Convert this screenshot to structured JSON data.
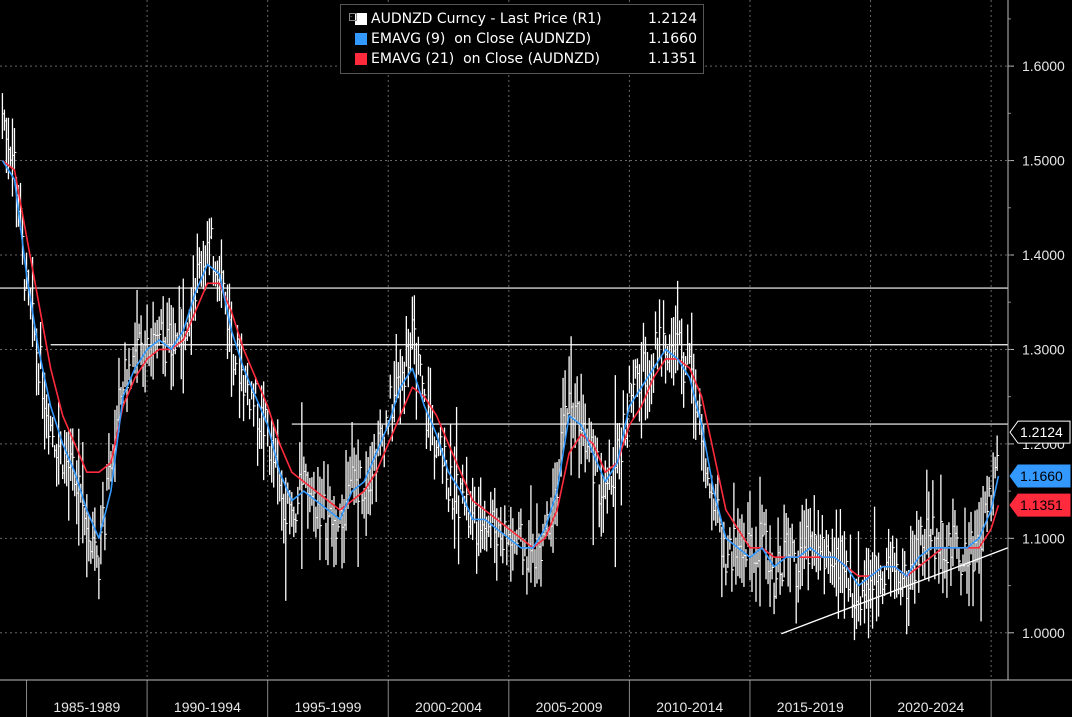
{
  "chart_data": {
    "type": "line",
    "title": "",
    "xlabel": "",
    "ylabel": "",
    "ylim": [
      0.95,
      1.67
    ],
    "xlim": [
      1983.9,
      2025.7
    ],
    "y_ticks": [
      "1.0000",
      "1.1000",
      "1.2000",
      "1.3000",
      "1.4000",
      "1.5000",
      "1.6000"
    ],
    "y_tick_values": [
      1.0,
      1.1,
      1.2,
      1.3,
      1.4,
      1.5,
      1.6
    ],
    "x_ticks": [
      "1985-1989",
      "1990-1994",
      "1995-1999",
      "2000-2004",
      "2005-2009",
      "2010-2014",
      "2015-2019",
      "2020-2024"
    ],
    "x_tick_bounds": [
      1985,
      1990,
      1995,
      2000,
      2005,
      2010,
      2015,
      2020,
      2025
    ],
    "grid": true,
    "legend_position": "top-center",
    "series": [
      {
        "name": "AUDNZD Curncy - Last Price (R1)",
        "label_value": "1.2124",
        "style": "high-low bars",
        "color": "#ffffff",
        "x": [
          1984.0,
          1984.5,
          1985.0,
          1985.5,
          1986.0,
          1986.5,
          1987.0,
          1987.5,
          1988.0,
          1988.5,
          1989.0,
          1989.5,
          1990.0,
          1990.5,
          1991.0,
          1991.5,
          1992.0,
          1992.5,
          1993.0,
          1993.5,
          1994.0,
          1994.5,
          1995.0,
          1995.5,
          1996.0,
          1996.5,
          1997.0,
          1997.5,
          1998.0,
          1998.5,
          1999.0,
          1999.5,
          2000.0,
          2000.5,
          2001.0,
          2001.5,
          2002.0,
          2002.5,
          2003.0,
          2003.5,
          2004.0,
          2004.5,
          2005.0,
          2005.5,
          2006.0,
          2006.5,
          2007.0,
          2007.5,
          2008.0,
          2008.5,
          2009.0,
          2009.5,
          2010.0,
          2010.5,
          2011.0,
          2011.5,
          2012.0,
          2012.5,
          2013.0,
          2013.5,
          2014.0,
          2014.5,
          2015.0,
          2015.5,
          2016.0,
          2016.5,
          2017.0,
          2017.5,
          2018.0,
          2018.5,
          2019.0,
          2019.5,
          2020.0,
          2020.5,
          2021.0,
          2021.5,
          2022.0,
          2022.5,
          2023.0,
          2023.5,
          2024.0,
          2024.5,
          2025.0,
          2025.3
        ],
        "y": [
          1.55,
          1.5,
          1.36,
          1.29,
          1.22,
          1.19,
          1.16,
          1.12,
          1.08,
          1.17,
          1.27,
          1.29,
          1.31,
          1.32,
          1.3,
          1.33,
          1.37,
          1.41,
          1.39,
          1.31,
          1.27,
          1.24,
          1.21,
          1.15,
          1.13,
          1.15,
          1.14,
          1.12,
          1.11,
          1.16,
          1.16,
          1.19,
          1.23,
          1.27,
          1.31,
          1.24,
          1.2,
          1.16,
          1.14,
          1.11,
          1.12,
          1.11,
          1.1,
          1.09,
          1.08,
          1.11,
          1.16,
          1.26,
          1.23,
          1.18,
          1.14,
          1.18,
          1.25,
          1.27,
          1.29,
          1.31,
          1.3,
          1.28,
          1.22,
          1.14,
          1.08,
          1.09,
          1.08,
          1.1,
          1.06,
          1.09,
          1.07,
          1.1,
          1.08,
          1.09,
          1.06,
          1.04,
          1.06,
          1.07,
          1.07,
          1.05,
          1.09,
          1.11,
          1.09,
          1.09,
          1.08,
          1.1,
          1.15,
          1.2124
        ]
      },
      {
        "name": "EMAVG (9)  on Close (AUDNZD)",
        "label_value": "1.1660",
        "color": "#3399ff",
        "x": [
          1984.0,
          1984.5,
          1985.0,
          1985.5,
          1986.0,
          1986.5,
          1987.0,
          1987.5,
          1988.0,
          1988.5,
          1989.0,
          1989.5,
          1990.0,
          1990.5,
          1991.0,
          1991.5,
          1992.0,
          1992.5,
          1993.0,
          1993.5,
          1994.0,
          1994.5,
          1995.0,
          1995.5,
          1996.0,
          1996.5,
          1997.0,
          1997.5,
          1998.0,
          1998.5,
          1999.0,
          1999.5,
          2000.0,
          2000.5,
          2001.0,
          2001.5,
          2002.0,
          2002.5,
          2003.0,
          2003.5,
          2004.0,
          2004.5,
          2005.0,
          2005.5,
          2006.0,
          2006.5,
          2007.0,
          2007.5,
          2008.0,
          2008.5,
          2009.0,
          2009.5,
          2010.0,
          2010.5,
          2011.0,
          2011.5,
          2012.0,
          2012.5,
          2013.0,
          2013.5,
          2014.0,
          2014.5,
          2015.0,
          2015.5,
          2016.0,
          2016.5,
          2017.0,
          2017.5,
          2018.0,
          2018.5,
          2019.0,
          2019.5,
          2020.0,
          2020.5,
          2021.0,
          2021.5,
          2022.0,
          2022.5,
          2023.0,
          2023.5,
          2024.0,
          2024.5,
          2025.0,
          2025.3
        ],
        "y": [
          1.5,
          1.48,
          1.38,
          1.3,
          1.24,
          1.2,
          1.17,
          1.13,
          1.1,
          1.15,
          1.25,
          1.28,
          1.3,
          1.31,
          1.3,
          1.32,
          1.36,
          1.39,
          1.38,
          1.32,
          1.28,
          1.25,
          1.22,
          1.17,
          1.14,
          1.15,
          1.14,
          1.13,
          1.12,
          1.15,
          1.16,
          1.19,
          1.22,
          1.26,
          1.28,
          1.24,
          1.21,
          1.17,
          1.15,
          1.12,
          1.12,
          1.11,
          1.1,
          1.09,
          1.09,
          1.11,
          1.15,
          1.23,
          1.22,
          1.19,
          1.16,
          1.18,
          1.24,
          1.26,
          1.28,
          1.3,
          1.29,
          1.27,
          1.22,
          1.15,
          1.1,
          1.09,
          1.08,
          1.09,
          1.07,
          1.08,
          1.08,
          1.09,
          1.08,
          1.08,
          1.07,
          1.05,
          1.06,
          1.07,
          1.07,
          1.06,
          1.08,
          1.09,
          1.09,
          1.09,
          1.09,
          1.1,
          1.13,
          1.166
        ]
      },
      {
        "name": "EMAVG (21)  on Close (AUDNZD)",
        "label_value": "1.1351",
        "color": "#ff2b3d",
        "x": [
          1984.0,
          1984.5,
          1985.0,
          1985.5,
          1986.0,
          1986.5,
          1987.0,
          1987.5,
          1988.0,
          1988.5,
          1989.0,
          1989.5,
          1990.0,
          1990.5,
          1991.0,
          1991.5,
          1992.0,
          1992.5,
          1993.0,
          1993.5,
          1994.0,
          1994.5,
          1995.0,
          1995.5,
          1996.0,
          1996.5,
          1997.0,
          1997.5,
          1998.0,
          1998.5,
          1999.0,
          1999.5,
          2000.0,
          2000.5,
          2001.0,
          2001.5,
          2002.0,
          2002.5,
          2003.0,
          2003.5,
          2004.0,
          2004.5,
          2005.0,
          2005.5,
          2006.0,
          2006.5,
          2007.0,
          2007.5,
          2008.0,
          2008.5,
          2009.0,
          2009.5,
          2010.0,
          2010.5,
          2011.0,
          2011.5,
          2012.0,
          2012.5,
          2013.0,
          2013.5,
          2014.0,
          2014.5,
          2015.0,
          2015.5,
          2016.0,
          2016.5,
          2017.0,
          2017.5,
          2018.0,
          2018.5,
          2019.0,
          2019.5,
          2020.0,
          2020.5,
          2021.0,
          2021.5,
          2022.0,
          2022.5,
          2023.0,
          2023.5,
          2024.0,
          2024.5,
          2025.0,
          2025.3
        ],
        "y": [
          1.5,
          1.49,
          1.42,
          1.35,
          1.28,
          1.23,
          1.2,
          1.17,
          1.17,
          1.18,
          1.24,
          1.27,
          1.29,
          1.3,
          1.3,
          1.31,
          1.34,
          1.37,
          1.37,
          1.34,
          1.3,
          1.27,
          1.24,
          1.2,
          1.17,
          1.16,
          1.15,
          1.14,
          1.13,
          1.14,
          1.15,
          1.17,
          1.2,
          1.23,
          1.26,
          1.25,
          1.23,
          1.2,
          1.17,
          1.14,
          1.13,
          1.12,
          1.11,
          1.1,
          1.09,
          1.1,
          1.13,
          1.19,
          1.21,
          1.2,
          1.17,
          1.18,
          1.22,
          1.24,
          1.27,
          1.29,
          1.29,
          1.28,
          1.25,
          1.19,
          1.13,
          1.11,
          1.09,
          1.09,
          1.08,
          1.08,
          1.08,
          1.08,
          1.08,
          1.08,
          1.07,
          1.06,
          1.06,
          1.07,
          1.07,
          1.06,
          1.07,
          1.08,
          1.09,
          1.09,
          1.09,
          1.09,
          1.11,
          1.1351
        ]
      }
    ],
    "annotations": [
      {
        "type": "horizontal-line",
        "y": 1.365,
        "x_start": 1983.9
      },
      {
        "type": "horizontal-line",
        "y": 1.305,
        "x_start": 1986.0
      },
      {
        "type": "horizontal-line",
        "y": 1.221,
        "x_start": 1996.0
      },
      {
        "type": "trend-line",
        "from": [
          2016.3,
          0.999
        ],
        "to": [
          2025.7,
          1.09
        ]
      }
    ],
    "colors": {
      "background": "#000000",
      "grid": "#666666",
      "text": "#e6e6e6",
      "annotation": "#ffffff"
    }
  }
}
